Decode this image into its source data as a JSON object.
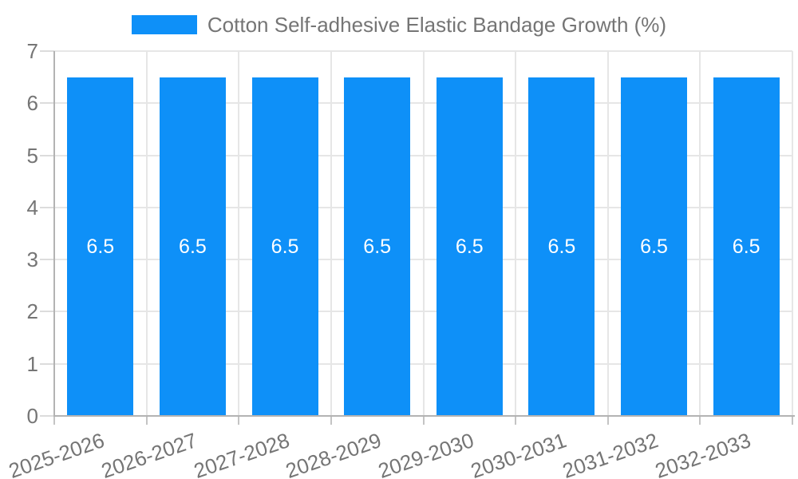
{
  "chart_data": {
    "type": "bar",
    "title": "Cotton Self-adhesive Elastic Bandage Growth (%)",
    "categories": [
      "2025-2026",
      "2026-2027",
      "2027-2028",
      "2028-2029",
      "2029-2030",
      "2030-2031",
      "2031-2032",
      "2032-2033"
    ],
    "values": [
      6.5,
      6.5,
      6.5,
      6.5,
      6.5,
      6.5,
      6.5,
      6.5
    ],
    "bar_labels": [
      "6.5",
      "6.5",
      "6.5",
      "6.5",
      "6.5",
      "6.5",
      "6.5",
      "6.5"
    ],
    "xlabel": "",
    "ylabel": "",
    "ylim": [
      0,
      7
    ],
    "ytick_labels": [
      "0",
      "1",
      "2",
      "3",
      "4",
      "5",
      "6",
      "7"
    ],
    "grid": true,
    "legend_position": "top-center",
    "colors": {
      "bar": "#0e90f8",
      "bar_label": "#ffffff",
      "grid": "#e6e6e6",
      "y_tick": "#dcdcdc",
      "x_tick": "#c4c4c4",
      "axis": "#b3b3b3",
      "text": "#757575",
      "background": "#ffffff"
    }
  }
}
